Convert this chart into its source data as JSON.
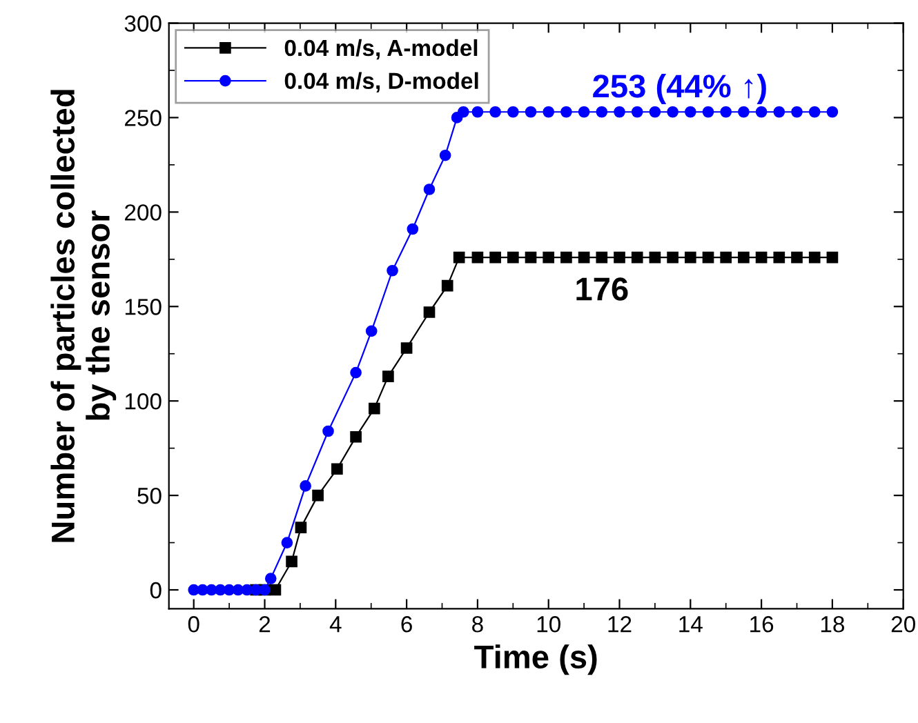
{
  "chart_data": {
    "type": "line",
    "xlabel": "Time (s)",
    "ylabel": "Number of particles collected\nby the sensor",
    "xlim": [
      -0.7,
      20
    ],
    "xticks": [
      0,
      2,
      4,
      6,
      8,
      10,
      12,
      14,
      16,
      18,
      20
    ],
    "ylim": [
      -10,
      300
    ],
    "yticks": [
      0,
      50,
      100,
      150,
      200,
      250,
      300
    ],
    "legend": "top left",
    "grid": false,
    "series": [
      {
        "name": "0.04 m/s, A-model",
        "color": "#000000",
        "marker": "square",
        "x": [
          1.75,
          2,
          2.3,
          2.76,
          3.02,
          3.5,
          4.04,
          4.57,
          5.09,
          5.48,
          6.0,
          6.64,
          7.15,
          7.48,
          8,
          8.5,
          9,
          9.5,
          10,
          10.5,
          11,
          11.5,
          12,
          12.5,
          13,
          13.5,
          14,
          14.5,
          15,
          15.5,
          16,
          16.5,
          17,
          17.5,
          18
        ],
        "values": [
          0,
          0,
          0,
          15,
          33,
          50,
          64,
          81,
          96,
          113,
          128,
          147,
          161,
          176,
          176,
          176,
          176,
          176,
          176,
          176,
          176,
          176,
          176,
          176,
          176,
          176,
          176,
          176,
          176,
          176,
          176,
          176,
          176,
          176,
          176
        ]
      },
      {
        "name": "0.04 m/s, D-model",
        "color": "#0000ff",
        "marker": "circle",
        "x": [
          0,
          0.25,
          0.5,
          0.75,
          1,
          1.25,
          1.5,
          1.75,
          2,
          2.17,
          2.63,
          3.15,
          3.79,
          4.57,
          5.01,
          5.6,
          6.17,
          6.64,
          7.09,
          7.42,
          7.6,
          8,
          8.5,
          9,
          9.5,
          10,
          10.5,
          11,
          11.5,
          12,
          12.5,
          13,
          13.5,
          14,
          14.5,
          15,
          15.5,
          16,
          16.5,
          17,
          17.5,
          18
        ],
        "values": [
          0,
          0,
          0,
          0,
          0,
          0,
          0,
          0,
          0,
          6,
          25,
          55,
          84,
          115,
          137,
          169,
          191,
          212,
          230,
          250,
          253,
          253,
          253,
          253,
          253,
          253,
          253,
          253,
          253,
          253,
          253,
          253,
          253,
          253,
          253,
          253,
          253,
          253,
          253,
          253,
          253,
          253
        ]
      }
    ],
    "annotations": [
      {
        "text": "176",
        "x": 11.5,
        "y": 176
      },
      {
        "text": "253 (44% ↑)",
        "x": 13.7,
        "y": 253
      }
    ]
  }
}
